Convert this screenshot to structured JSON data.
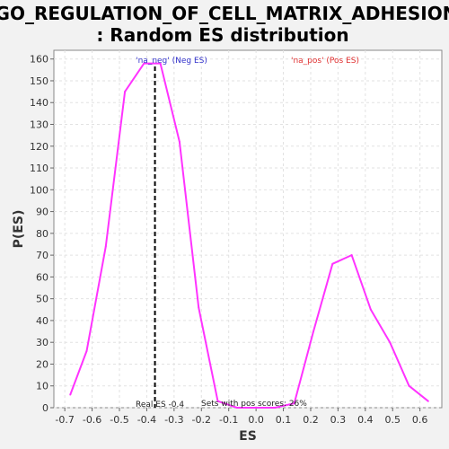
{
  "chart_data": {
    "type": "line",
    "title_line1": "GO_REGULATION_OF_CELL_MATRIX_ADHESION",
    "title_line2": ": Random ES distribution",
    "xlabel": "ES",
    "ylabel": "P(ES)",
    "xlim": [
      -0.74,
      0.68
    ],
    "ylim": [
      0,
      164
    ],
    "x_ticks": [
      -0.7,
      -0.6,
      -0.5,
      -0.4,
      -0.3,
      -0.2,
      -0.1,
      0.0,
      0.1,
      0.2,
      0.3,
      0.4,
      0.5,
      0.6
    ],
    "x_tick_labels": [
      "-0.7",
      "-0.6",
      "-0.5",
      "-0.4",
      "-0.3",
      "-0.2",
      "-0.1",
      "0.0",
      "0.1",
      "0.2",
      "0.3",
      "0.4",
      "0.5",
      "0.6"
    ],
    "y_ticks": [
      0,
      10,
      20,
      30,
      40,
      50,
      60,
      70,
      80,
      90,
      100,
      110,
      120,
      130,
      140,
      150,
      160
    ],
    "y_tick_labels": [
      "0",
      "10",
      "20",
      "30",
      "40",
      "50",
      "60",
      "70",
      "80",
      "90",
      "100",
      "110",
      "120",
      "130",
      "140",
      "150",
      "160"
    ],
    "grid": true,
    "series": [
      {
        "color": "#ff33ff",
        "x": [
          -0.68,
          -0.62,
          -0.55,
          -0.48,
          -0.41,
          -0.35,
          -0.28,
          -0.21,
          -0.14,
          -0.07,
          0.0,
          0.07,
          0.14,
          0.21,
          0.28,
          0.35,
          0.42,
          0.49,
          0.56,
          0.63
        ],
        "y": [
          6,
          26,
          74,
          145,
          158,
          158,
          122,
          46,
          3,
          0,
          0,
          0,
          2,
          35,
          66,
          70,
          45,
          30,
          10,
          3
        ]
      }
    ],
    "real_es": -0.37,
    "annotations": {
      "neg_label": "'na_neg' (Neg ES)",
      "pos_label": "'na_pos' (Pos ES)",
      "real_es_label": "Real ES -0.4",
      "pos_scores_label": "Sets with pos scores: 26%"
    },
    "colors": {
      "neg_label": "#3333cc",
      "pos_label": "#e03030",
      "plot_background": "#ffffff",
      "page_background": "#f2f2f2",
      "grid": "#e2e2e2",
      "real_es_line": "#000000"
    }
  }
}
